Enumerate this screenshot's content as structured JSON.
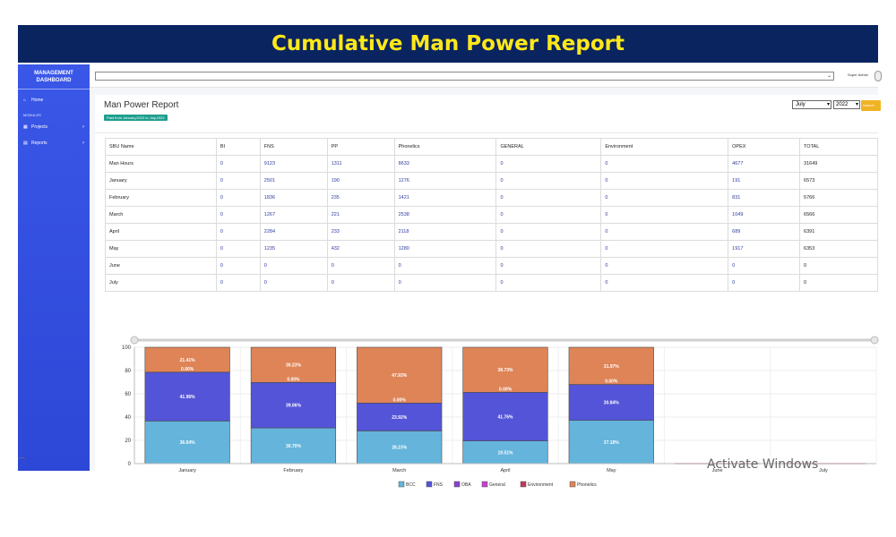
{
  "banner": {
    "title": "Cumulative Man Power Report"
  },
  "sidebar": {
    "brand": "MANAGEMENT DASHBOARD",
    "home": "Home",
    "modules_label": "MODULES",
    "items": [
      {
        "label": "Projects",
        "icon": "grid-icon"
      },
      {
        "label": "Reports",
        "icon": "chart-icon"
      }
    ]
  },
  "topbar": {
    "user": "Super Admin"
  },
  "report": {
    "title": "Man Power Report",
    "period": "Past from January,2022 to July,2022",
    "month": "July",
    "year": "2022",
    "search_label": "Search"
  },
  "table": {
    "headers": [
      "SBU Name",
      "BI",
      "FNS",
      "PP",
      "Phonelics",
      "GENERAL",
      "Environment",
      "OPEX",
      "TOTAL"
    ],
    "rows": [
      [
        "Man Hours",
        "0",
        "9123",
        "1311",
        "8633",
        "0",
        "0",
        "4677",
        "31649"
      ],
      [
        "January",
        "0",
        "2501",
        "190",
        "1276",
        "0",
        "0",
        "191",
        "6573"
      ],
      [
        "February",
        "0",
        "1836",
        "235",
        "1421",
        "0",
        "0",
        "831",
        "5766"
      ],
      [
        "March",
        "0",
        "1267",
        "221",
        "2538",
        "0",
        "0",
        "1049",
        "6566"
      ],
      [
        "April",
        "0",
        "2284",
        "233",
        "2118",
        "0",
        "0",
        "689",
        "6391"
      ],
      [
        "May",
        "0",
        "1235",
        "432",
        "1280",
        "0",
        "0",
        "1917",
        "6353"
      ],
      [
        "June",
        "0",
        "0",
        "0",
        "0",
        "0",
        "0",
        "0",
        "0"
      ],
      [
        "July",
        "0",
        "0",
        "0",
        "0",
        "0",
        "0",
        "0",
        "0"
      ]
    ]
  },
  "chart_data": {
    "type": "bar",
    "stacked": true,
    "percent": true,
    "ylim": [
      0,
      100
    ],
    "yticks": [
      0,
      20,
      40,
      60,
      80,
      100
    ],
    "categories": [
      "January",
      "February",
      "March",
      "April",
      "May",
      "June",
      "July"
    ],
    "series": [
      {
        "name": "BCC",
        "color": "#64b4dc",
        "values": [
          36.64,
          30.7,
          28.15,
          19.51,
          37.19,
          0,
          0
        ],
        "labels": [
          "36.64%",
          "30.70%",
          "28.15%",
          "19.51%",
          "37.19%",
          "",
          ""
        ]
      },
      {
        "name": "FNS",
        "color": "#5454d8",
        "values": [
          41.96,
          39.06,
          23.92,
          41.76,
          30.84,
          0,
          0
        ],
        "labels": [
          "41.96%",
          "39.06%",
          "23.92%",
          "41.76%",
          "30.84%",
          "",
          ""
        ]
      },
      {
        "name": "OBA",
        "color": "#8a3fd1",
        "values": [
          0,
          0,
          0,
          0,
          0,
          0,
          0
        ],
        "labels": [
          "0.00%",
          "0.00%",
          "0.00%",
          "0.00%",
          "0.00%",
          "",
          ""
        ]
      },
      {
        "name": "General",
        "color": "#c63fd1",
        "values": [
          0,
          0,
          0,
          0,
          0,
          0,
          0
        ],
        "labels": [
          "",
          "",
          "",
          "",
          "",
          "",
          ""
        ]
      },
      {
        "name": "Environment",
        "color": "#c2385b",
        "values": [
          0,
          0,
          0,
          0,
          0,
          0,
          0
        ],
        "labels": [
          "",
          "",
          "",
          "",
          "",
          "",
          ""
        ]
      },
      {
        "name": "Phonelics",
        "color": "#de8457",
        "values": [
          21.41,
          30.23,
          47.93,
          38.73,
          31.97,
          0,
          0
        ],
        "labels": [
          "21.41%",
          "30.23%",
          "47.93%",
          "38.73%",
          "31.97%",
          "",
          ""
        ]
      }
    ],
    "legend_position": "bottom",
    "grid": true
  },
  "watermark": {
    "text": "Activate Windows"
  }
}
